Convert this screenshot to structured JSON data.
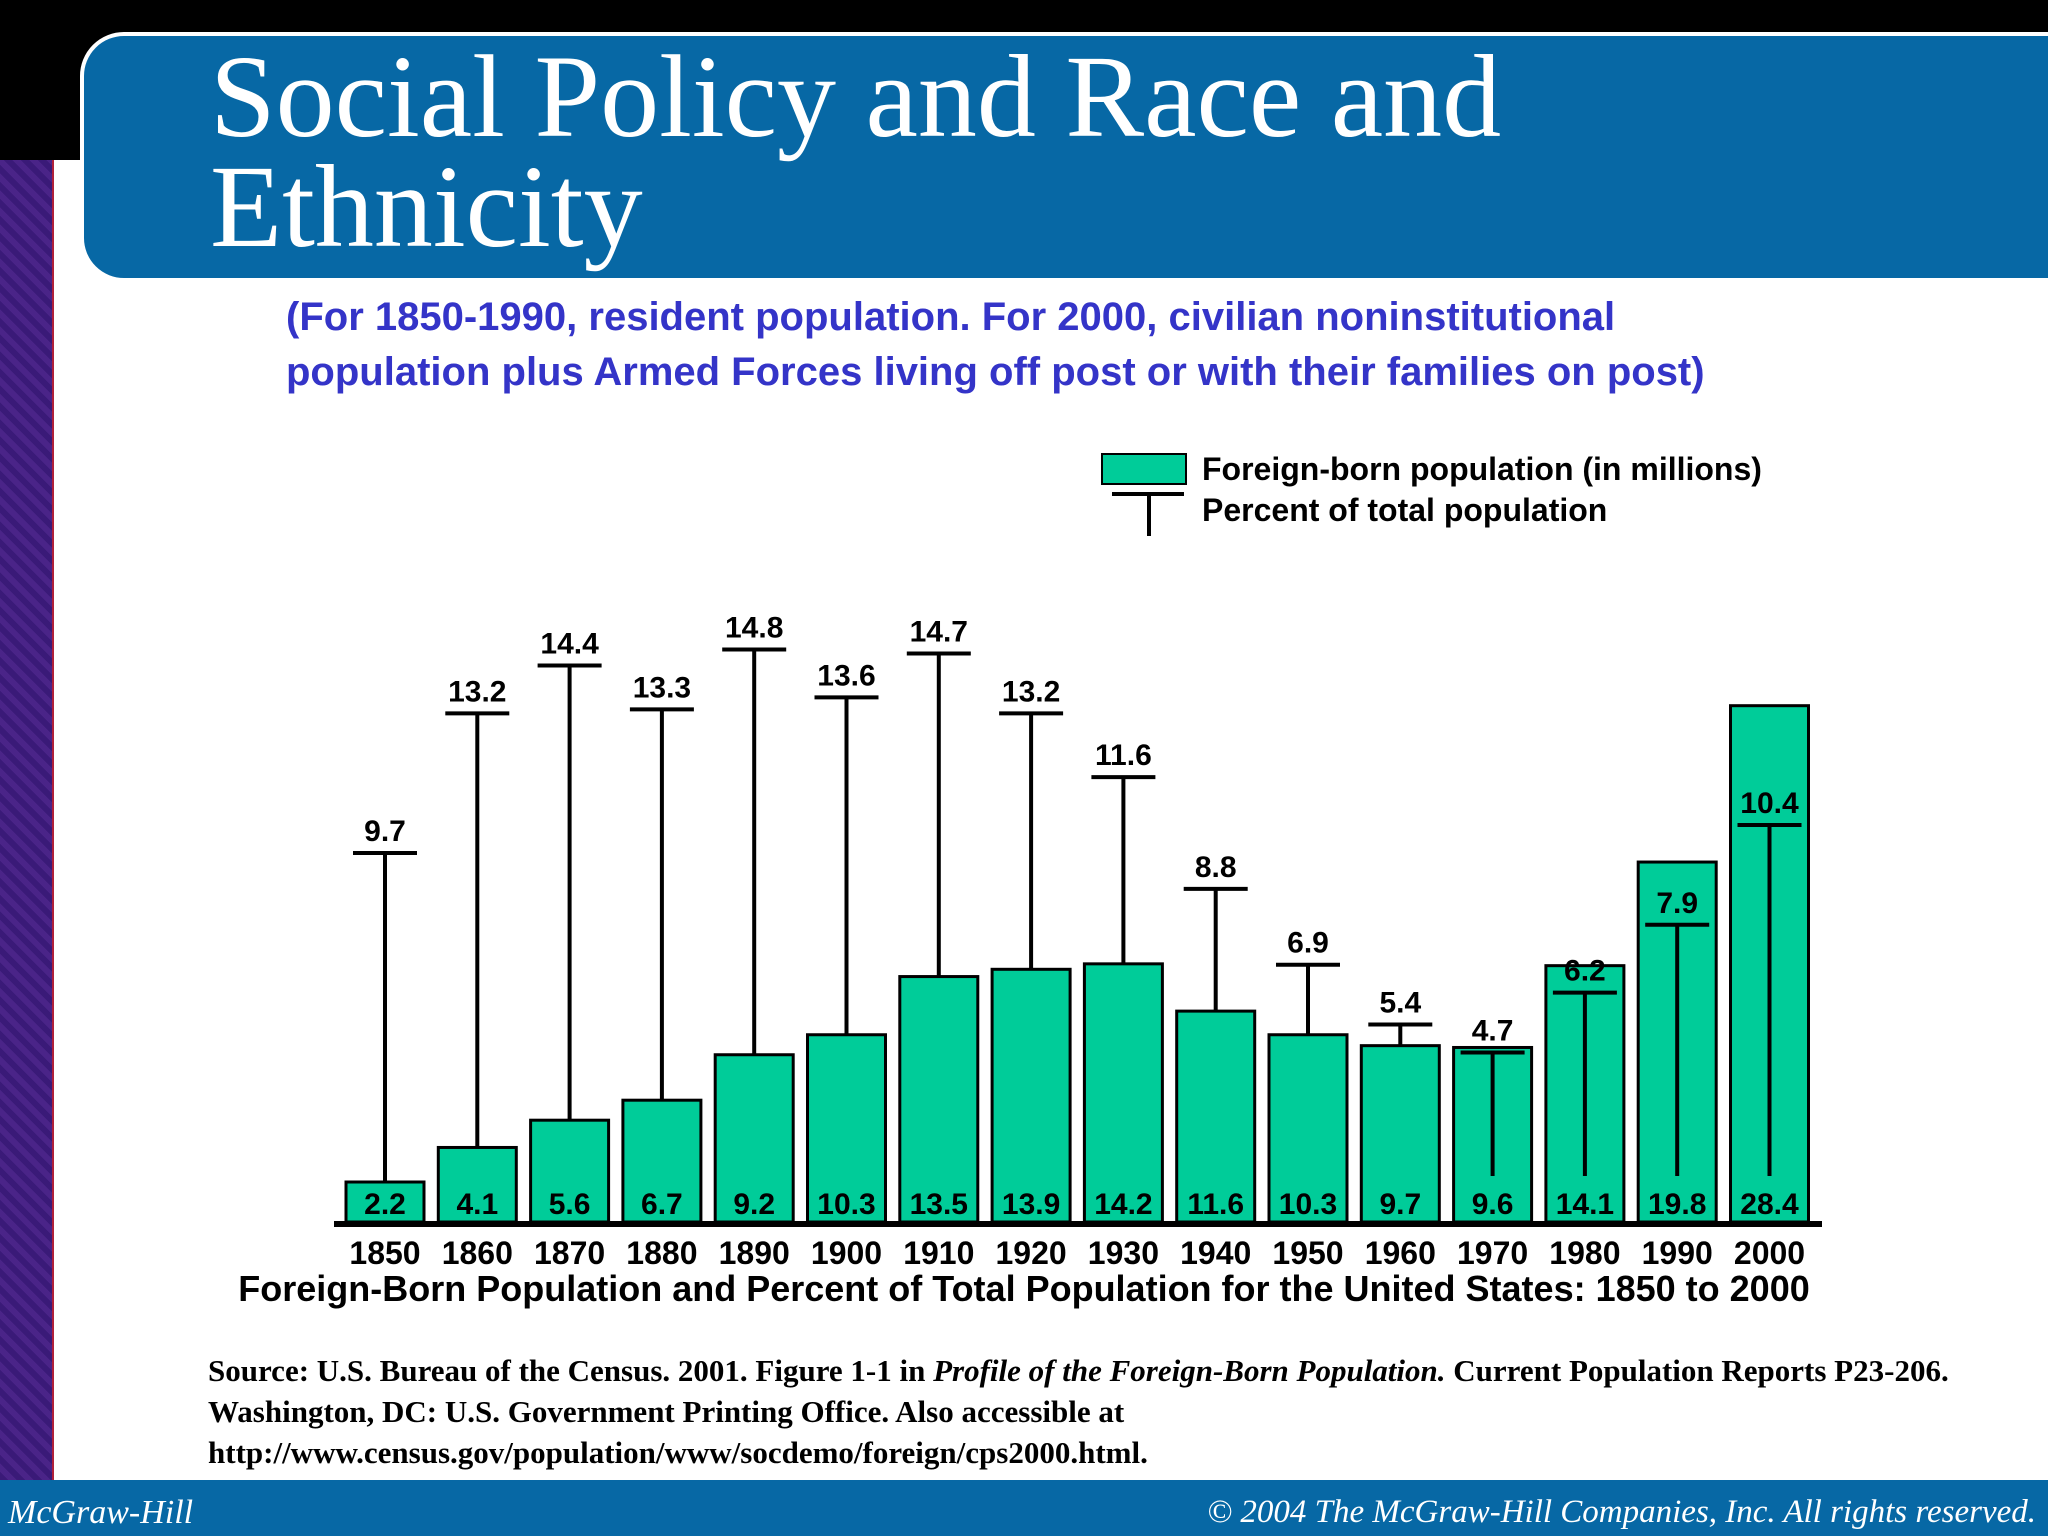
{
  "title": "Social Policy and Race and\nEthnicity",
  "subtitle": "(For 1850-1990, resident population. For 2000, civilian noninstitutional\npopulation plus Armed Forces living off post or with their families on post)",
  "chart_data": {
    "type": "bar",
    "categories": [
      "1850",
      "1860",
      "1870",
      "1880",
      "1890",
      "1900",
      "1910",
      "1920",
      "1930",
      "1940",
      "1950",
      "1960",
      "1970",
      "1980",
      "1990",
      "2000"
    ],
    "series": [
      {
        "name": "Foreign-born population (in millions)",
        "values": [
          2.2,
          4.1,
          5.6,
          6.7,
          9.2,
          10.3,
          13.5,
          13.9,
          14.2,
          11.6,
          10.3,
          9.7,
          9.6,
          14.1,
          19.8,
          28.4
        ],
        "color": "#00cc99"
      },
      {
        "name": "Percent of total population",
        "values": [
          9.7,
          13.2,
          14.4,
          13.3,
          14.8,
          13.6,
          14.7,
          13.2,
          11.6,
          8.8,
          6.9,
          5.4,
          4.7,
          6.2,
          7.9,
          10.4
        ],
        "color": "#000000"
      }
    ],
    "caption": "Foreign-Born Population and Percent of Total Population for the United States: 1850 to 2000",
    "legend_position": "top-right"
  },
  "source": {
    "prefix": "Source: U.S. Bureau of the Census. 2001. Figure 1-1 in ",
    "italic": "Profile of the Foreign-Born Population.",
    "suffix": " Current Population Reports P23-206. Washington, DC: U.S. Government Printing Office. Also accessible at http://www.census.gov/population/www/socdemo/foreign/cps2000.html."
  },
  "footer": {
    "left": "McGraw-Hill",
    "right": "© 2004 The McGraw-Hill Companies, Inc. All rights reserved."
  }
}
